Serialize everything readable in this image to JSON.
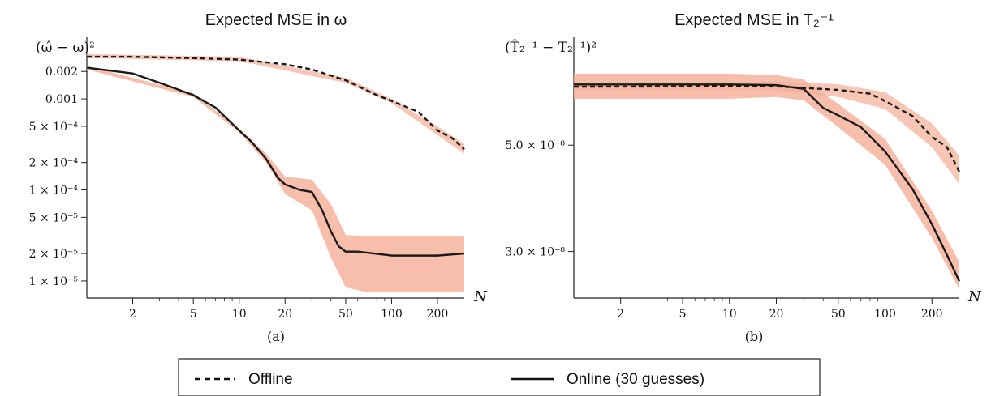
{
  "colors": {
    "band": "#f5b39c",
    "band_dark": "#ef9a82",
    "line": "#1a1a1a",
    "axis": "#222222"
  },
  "legend": {
    "offline": "Offline",
    "online": "Online (30 guesses)"
  },
  "chart_data": [
    {
      "type": "line",
      "title": "Expected MSE in ω",
      "caption": "(a)",
      "ylabel": "(ω̂ − ω)²",
      "xlabel": "N",
      "xscale": "log",
      "yscale": "log",
      "xlim": [
        1,
        300
      ],
      "ylim": [
        6.5e-06,
        0.0042
      ],
      "xticks": [
        2,
        5,
        10,
        20,
        50,
        100,
        200
      ],
      "yticks": [
        {
          "value": 0.002,
          "label": "0.002"
        },
        {
          "value": 0.001,
          "label": "0.001"
        },
        {
          "value": 0.0005,
          "label": "5 × 10⁻⁴"
        },
        {
          "value": 0.0002,
          "label": "2 × 10⁻⁴"
        },
        {
          "value": 0.0001,
          "label": "1 × 10⁻⁴"
        },
        {
          "value": 5e-05,
          "label": "5 × 10⁻⁵"
        },
        {
          "value": 2e-05,
          "label": "2 × 10⁻⁵"
        },
        {
          "value": 1e-05,
          "label": "1 × 10⁻⁵"
        }
      ],
      "series": [
        {
          "name": "Offline",
          "style": "dashed",
          "points": [
            [
              1,
              0.0029
            ],
            [
              2,
              0.0029
            ],
            [
              5,
              0.0028
            ],
            [
              10,
              0.0027
            ],
            [
              20,
              0.0024
            ],
            [
              30,
              0.0021
            ],
            [
              50,
              0.0016
            ],
            [
              80,
              0.0011
            ],
            [
              100,
              0.00095
            ],
            [
              150,
              0.00072
            ],
            [
              200,
              0.00045
            ],
            [
              250,
              0.00037
            ],
            [
              300,
              0.00028
            ]
          ],
          "band": [
            [
              1,
              0.0031,
              0.0028
            ],
            [
              10,
              0.0029,
              0.0026
            ],
            [
              50,
              0.0017,
              0.0015
            ],
            [
              100,
              0.001,
              0.0009
            ],
            [
              200,
              0.0005,
              0.0004
            ],
            [
              300,
              0.00032,
              0.00025
            ]
          ]
        },
        {
          "name": "Online (30 guesses)",
          "style": "solid",
          "points": [
            [
              1,
              0.0022
            ],
            [
              2,
              0.0019
            ],
            [
              3,
              0.0015
            ],
            [
              5,
              0.0011
            ],
            [
              7,
              0.0008
            ],
            [
              10,
              0.00045
            ],
            [
              12,
              0.00034
            ],
            [
              15,
              0.00022
            ],
            [
              18,
              0.000135
            ],
            [
              20,
              0.000115
            ],
            [
              25,
              0.0001
            ],
            [
              30,
              9.5e-05
            ],
            [
              35,
              6e-05
            ],
            [
              40,
              3.5e-05
            ],
            [
              45,
              2.4e-05
            ],
            [
              50,
              2.1e-05
            ],
            [
              60,
              2.1e-05
            ],
            [
              100,
              1.9e-05
            ],
            [
              200,
              1.9e-05
            ],
            [
              300,
              2e-05
            ]
          ],
          "band": [
            [
              1,
              0.0023,
              0.0021
            ],
            [
              5,
              0.00115,
              0.00105
            ],
            [
              10,
              0.00047,
              0.00043
            ],
            [
              15,
              0.00025,
              0.0002
            ],
            [
              20,
              0.00014,
              9e-05
            ],
            [
              30,
              0.00013,
              6e-05
            ],
            [
              40,
              7e-05,
              1.8e-05
            ],
            [
              50,
              3.2e-05,
              8.5e-06
            ],
            [
              70,
              3.1e-05,
              7.5e-06
            ],
            [
              100,
              3.1e-05,
              7.5e-06
            ],
            [
              200,
              3.1e-05,
              7.5e-06
            ],
            [
              300,
              3.1e-05,
              7.5e-06
            ]
          ]
        }
      ]
    },
    {
      "type": "line",
      "title": "Expected MSE in T₂⁻¹",
      "caption": "(b)",
      "ylabel": "(T̂₂⁻¹ − T₂⁻¹)²",
      "xlabel": "N",
      "xscale": "log",
      "yscale": "log",
      "xlim": [
        1,
        300
      ],
      "ylim": [
        2.4e-08,
        8.2e-08
      ],
      "xticks": [
        2,
        5,
        10,
        20,
        50,
        100,
        200
      ],
      "yticks": [
        {
          "value": 5e-08,
          "label": "5.0 × 10⁻⁸"
        },
        {
          "value": 3e-08,
          "label": "3.0 × 10⁻⁸"
        }
      ],
      "series": [
        {
          "name": "Offline",
          "style": "dashed",
          "points": [
            [
              1,
              6.62e-08
            ],
            [
              10,
              6.63e-08
            ],
            [
              20,
              6.63e-08
            ],
            [
              30,
              6.58e-08
            ],
            [
              50,
              6.52e-08
            ],
            [
              80,
              6.4e-08
            ],
            [
              100,
              6.18e-08
            ],
            [
              150,
              5.75e-08
            ],
            [
              200,
              5.2e-08
            ],
            [
              250,
              4.95e-08
            ],
            [
              300,
              4.4e-08
            ]
          ],
          "band": [
            [
              1,
              6.75e-08,
              6.5e-08
            ],
            [
              20,
              6.78e-08,
              6.5e-08
            ],
            [
              50,
              6.7e-08,
              6.3e-08
            ],
            [
              100,
              6.45e-08,
              5.95e-08
            ],
            [
              200,
              5.55e-08,
              4.95e-08
            ],
            [
              300,
              4.75e-08,
              4.15e-08
            ]
          ]
        },
        {
          "name": "Online (30 guesses)",
          "style": "solid",
          "points": [
            [
              1,
              6.69e-08
            ],
            [
              10,
              6.69e-08
            ],
            [
              20,
              6.67e-08
            ],
            [
              30,
              6.55e-08
            ],
            [
              40,
              5.98e-08
            ],
            [
              50,
              5.77e-08
            ],
            [
              70,
              5.45e-08
            ],
            [
              100,
              4.85e-08
            ],
            [
              150,
              4.05e-08
            ],
            [
              200,
              3.42e-08
            ],
            [
              250,
              2.95e-08
            ],
            [
              300,
              2.6e-08
            ]
          ],
          "band": [
            [
              1,
              7.05e-08,
              6.25e-08
            ],
            [
              10,
              7.05e-08,
              6.25e-08
            ],
            [
              20,
              7e-08,
              6.3e-08
            ],
            [
              30,
              6.85e-08,
              6.2e-08
            ],
            [
              50,
              6.1e-08,
              5.45e-08
            ],
            [
              100,
              5.15e-08,
              4.55e-08
            ],
            [
              200,
              3.65e-08,
              3.2e-08
            ],
            [
              300,
              2.85e-08,
              2.5e-08
            ]
          ]
        }
      ]
    }
  ]
}
